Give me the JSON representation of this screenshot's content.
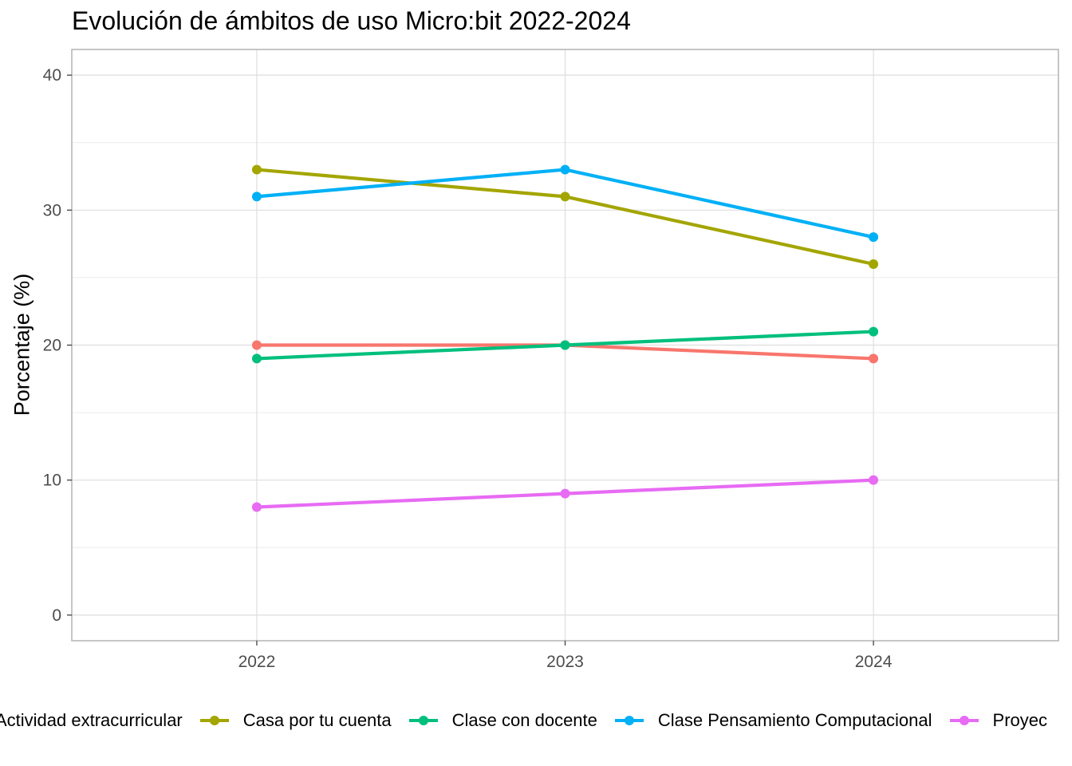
{
  "chart_data": {
    "type": "line",
    "title": "Evolución de ámbitos de uso Micro:bit 2022-2024",
    "xlabel": "",
    "ylabel": "Porcentaje (%)",
    "x": [
      "2022",
      "2023",
      "2024"
    ],
    "y_ticks": [
      "0",
      "10",
      "20",
      "30",
      "40"
    ],
    "ylim": [
      -1.9,
      41.9
    ],
    "grid": true,
    "legend_position": "bottom",
    "series": [
      {
        "name": "Actividad extracurricular",
        "color": "#F8766D",
        "values": [
          20,
          20,
          19
        ]
      },
      {
        "name": "Casa por tu cuenta",
        "color": "#A3A500",
        "values": [
          33,
          31,
          26
        ]
      },
      {
        "name": "Clase con docente",
        "color": "#00BF7D",
        "values": [
          19,
          20,
          21
        ]
      },
      {
        "name": "Clase Pensamiento Computacional",
        "color": "#00B0F6",
        "values": [
          31,
          33,
          28
        ]
      },
      {
        "name": "Proyectos",
        "display_name": "Proyec",
        "color": "#E76BF3",
        "values": [
          8,
          9,
          10
        ]
      }
    ]
  }
}
